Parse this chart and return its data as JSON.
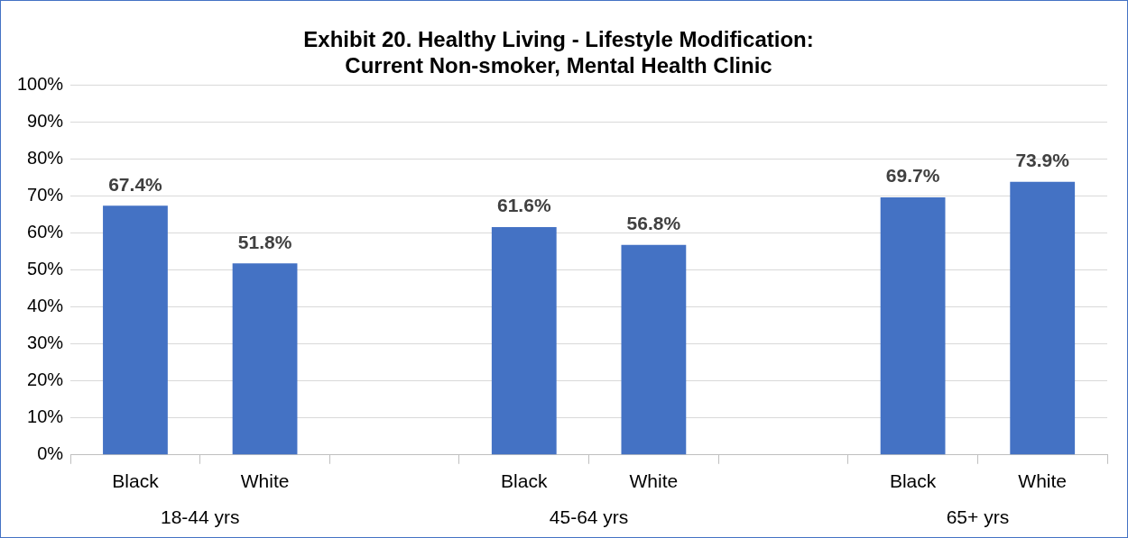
{
  "chart_data": {
    "type": "bar",
    "title": "Exhibit 20. Healthy Living - Lifestyle Modification:\nCurrent Non-smoker, Mental Health Clinic",
    "categories": [
      "Black",
      "White",
      null,
      "Black",
      "White",
      null,
      "Black",
      "White"
    ],
    "values": [
      67.4,
      51.8,
      null,
      61.6,
      56.8,
      null,
      69.7,
      73.9
    ],
    "value_labels": [
      "67.4%",
      "51.8%",
      null,
      "61.6%",
      "56.8%",
      null,
      "69.7%",
      "73.9%"
    ],
    "color": "#4472c4",
    "ylim": [
      0,
      100
    ],
    "yticks": [
      {
        "value": 0,
        "label": "0%"
      },
      {
        "value": 10,
        "label": "10%"
      },
      {
        "value": 20,
        "label": "20%"
      },
      {
        "value": 30,
        "label": "30%"
      },
      {
        "value": 40,
        "label": "40%"
      },
      {
        "value": 50,
        "label": "50%"
      },
      {
        "value": 60,
        "label": "60%"
      },
      {
        "value": 70,
        "label": "70%"
      },
      {
        "value": 80,
        "label": "80%"
      },
      {
        "value": 90,
        "label": "90%"
      },
      {
        "value": 100,
        "label": "100%"
      }
    ],
    "grid": "y",
    "legend": false,
    "annotations": [
      "18-44 yrs",
      "45-64 yrs",
      "65+ yrs"
    ]
  }
}
